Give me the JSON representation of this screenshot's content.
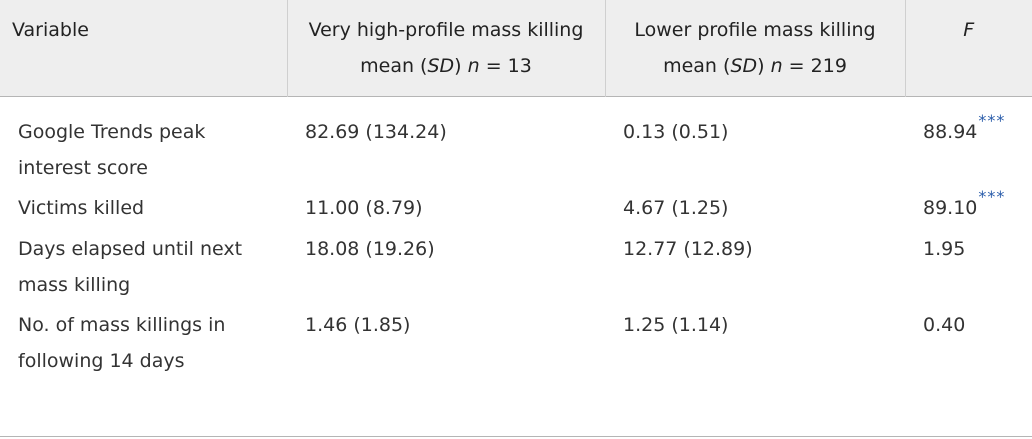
{
  "table": {
    "headers": {
      "variable": "Variable",
      "col1_line1": "Very high-profile mass killing",
      "col1_mean": "mean (",
      "col1_sd": "SD",
      "col1_mid": ") ",
      "col1_n": "n",
      "col1_count": " = 13",
      "col2_line1": "Lower profile mass killing",
      "col2_mean": "mean (",
      "col2_sd": "SD",
      "col2_mid": ") ",
      "col2_n": "n",
      "col2_count": " = 219",
      "f": "F"
    },
    "rows": [
      {
        "variable_line1": "Google Trends peak",
        "variable_line2": "interest score",
        "high": "82.69 (134.24)",
        "lower": "0.13 (0.51)",
        "f": "88.94",
        "sig": "***"
      },
      {
        "variable_line1": "Victims killed",
        "variable_line2": "",
        "high": "11.00 (8.79)",
        "lower": "4.67 (1.25)",
        "f": "89.10",
        "sig": "***"
      },
      {
        "variable_line1": "Days elapsed until next",
        "variable_line2": "mass killing",
        "high": "18.08 (19.26)",
        "lower": "12.77 (12.89)",
        "f": "1.95",
        "sig": ""
      },
      {
        "variable_line1": "No. of mass killings in",
        "variable_line2": "following 14 days",
        "high": "1.46 (1.85)",
        "lower": "1.25 (1.14)",
        "f": "0.40",
        "sig": ""
      }
    ]
  }
}
